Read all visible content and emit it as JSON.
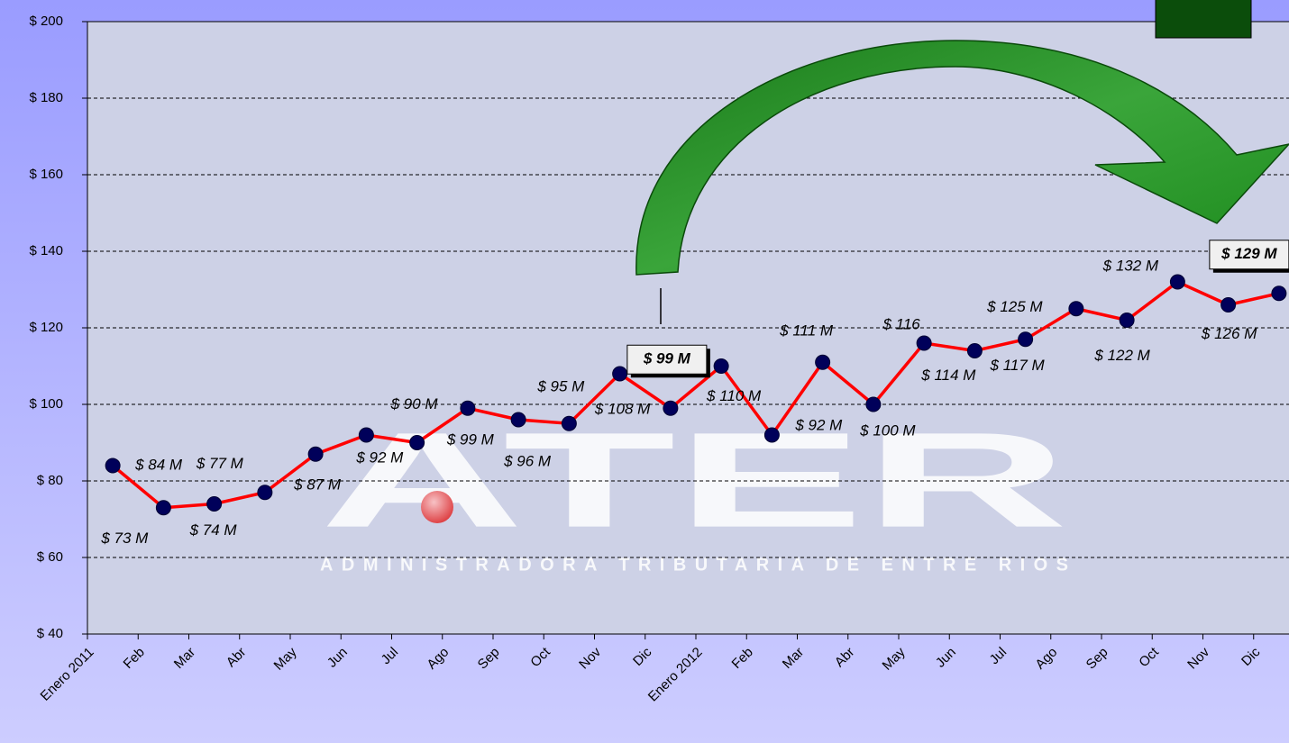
{
  "chart_data": {
    "type": "line",
    "categories": [
      "Enero 2011",
      "Feb",
      "Mar",
      "Abr",
      "May",
      "Jun",
      "Jul",
      "Ago",
      "Sep",
      "Oct",
      "Nov",
      "Dic",
      "Enero 2012",
      "Feb",
      "Mar",
      "Abr",
      "May",
      "Jun",
      "Jul",
      "Ago",
      "Sep",
      "Oct",
      "Nov",
      "Dic"
    ],
    "series": [
      {
        "color": "#ff0000",
        "values": [
          84,
          73,
          74,
          77,
          87,
          92,
          90,
          99,
          96,
          95,
          108,
          99,
          110,
          92,
          111,
          100,
          116,
          114,
          117,
          125,
          122,
          132,
          126,
          129
        ],
        "value_labels": [
          "$ 84 M",
          "$ 73 M",
          "$ 74 M",
          "$ 77 M",
          "$ 87 M",
          "$ 92 M",
          "$ 90 M",
          "$ 99 M",
          "$ 96 M",
          "$ 95 M",
          "$ 108 M",
          "$ 99 M",
          "$ 110 M",
          "$ 92 M",
          "$ 111 M",
          "$ 100 M",
          "$ 116",
          "$ 114 M",
          "$ 117 M",
          "$ 125 M",
          "$ 122 M",
          "$ 132 M",
          "$ 126 M",
          "$ 129 M"
        ]
      }
    ],
    "ylim": [
      40,
      200
    ],
    "yticks": [
      {
        "value": 40,
        "label": "$ 40"
      },
      {
        "value": 60,
        "label": "$ 60"
      },
      {
        "value": 80,
        "label": "$ 80"
      },
      {
        "value": 100,
        "label": "$ 100"
      },
      {
        "value": 120,
        "label": "$ 120"
      },
      {
        "value": 140,
        "label": "$ 140"
      },
      {
        "value": 160,
        "label": "$ 160"
      },
      {
        "value": 180,
        "label": "$ 180"
      },
      {
        "value": 200,
        "label": "$ 200"
      }
    ],
    "grid": true,
    "watermark": {
      "title": "ATER",
      "subtitle": "ADMINISTRADORA TRIBUTARIA DE ENTRE RIOS"
    }
  }
}
